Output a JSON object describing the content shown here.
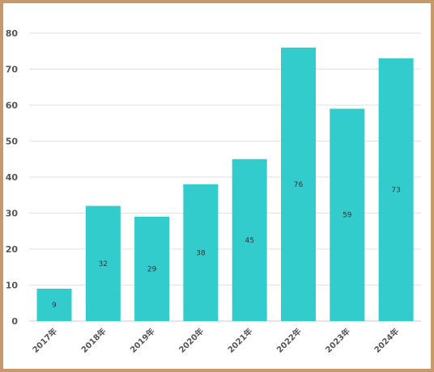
{
  "chart_data": {
    "type": "bar",
    "categories": [
      "2017年",
      "2018年",
      "2019年",
      "2020年",
      "2021年",
      "2022年",
      "2023年",
      "2024年"
    ],
    "values": [
      9,
      32,
      29,
      38,
      45,
      76,
      59,
      73
    ],
    "data_labels": [
      "9",
      "32",
      "29",
      "38",
      "45",
      "76",
      "59",
      "73"
    ],
    "yticks": [
      "0",
      "10",
      "20",
      "30",
      "40",
      "50",
      "60",
      "70",
      "80"
    ],
    "ylim": [
      0,
      80
    ],
    "title": "",
    "xlabel": "",
    "ylabel": "",
    "grid": true,
    "legend": "none",
    "colors": {
      "bar": "#33cccc",
      "grid": "#e2e2e2",
      "frame": "#c49a6c",
      "tick_text": "#555555"
    }
  }
}
